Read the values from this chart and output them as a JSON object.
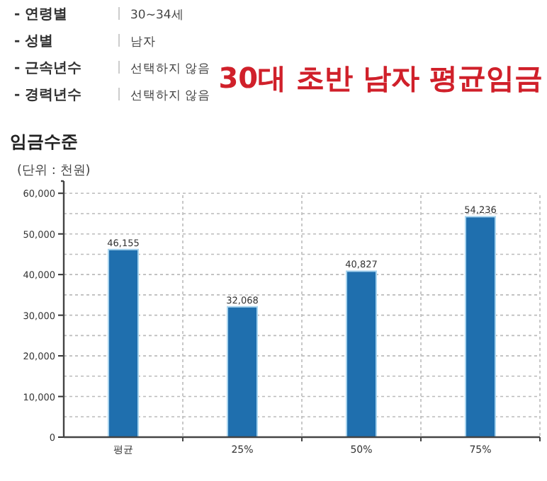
{
  "chart_data": {
    "type": "bar",
    "title": "30대 초반 남자 평균임금",
    "subtitle": "임금수준",
    "ylabel": "(단위 : 천원)",
    "annotations": [
      "- 연령별",
      "30~34세",
      "- 성별",
      "남자",
      "- 근속년수",
      "선택하지 않음",
      "- 경력년수",
      "선택하지 않음"
    ],
    "categories": [
      "평균",
      "25%",
      "50%",
      "75%"
    ],
    "values": [
      46155,
      32068,
      40827,
      54236
    ],
    "value_labels": [
      "46,155",
      "32,068",
      "40,827",
      "54,236"
    ],
    "color": "#1f6fae",
    "ylim": [
      0,
      63000
    ],
    "yticks": [
      0,
      {
        "value": 5000,
        "label": null
      },
      {
        "value": 10000,
        "label": "10,000"
      },
      {
        "value": 15000,
        "label": null
      },
      {
        "value": 20000,
        "label": "20,000"
      },
      {
        "value": 25000,
        "label": null
      },
      {
        "value": 30000,
        "label": "30,000"
      },
      {
        "value": 35000,
        "label": null
      },
      {
        "value": 40000,
        "label": "40,000"
      },
      {
        "value": 45000,
        "label": null
      },
      {
        "value": 50000,
        "label": "50,000"
      },
      {
        "value": 55000,
        "label": null
      },
      {
        "value": 60000,
        "label": "60,000"
      }
    ],
    "grid": true
  }
}
